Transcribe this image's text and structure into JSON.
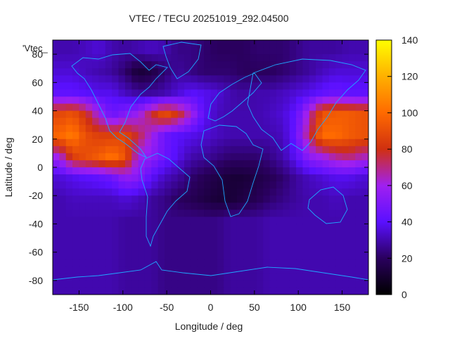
{
  "chart_data": {
    "type": "heatmap",
    "title": "VTEC / TECU 20251019_292.04500",
    "xlabel": "Longitude / deg",
    "ylabel": "Latitude / deg",
    "series_key": "'Vtec_",
    "xlim": [
      -180,
      180
    ],
    "ylim": [
      -90,
      90
    ],
    "xticks": [
      -150,
      -100,
      -50,
      0,
      50,
      100,
      150
    ],
    "yticks": [
      -80,
      -60,
      -40,
      -20,
      0,
      20,
      40,
      60,
      80
    ],
    "colorbar": {
      "min": 0,
      "max": 140,
      "ticks": [
        0,
        20,
        40,
        60,
        80,
        100,
        120,
        140
      ],
      "stops": [
        "#000000",
        "#2a005e",
        "#5a10ff",
        "#a020f0",
        "#d03010",
        "#ff6a00",
        "#ffb000",
        "#ffff00"
      ]
    },
    "grid": {
      "lon_start": -180,
      "lon_step": 15,
      "lat_start": 90,
      "lat_step": -15,
      "values": [
        [
          30,
          30,
          32,
          35,
          30,
          28,
          30,
          32,
          30,
          25,
          25,
          22,
          20,
          20,
          20,
          22,
          22,
          22,
          25,
          28,
          28,
          28,
          30,
          30
        ],
        [
          35,
          35,
          32,
          30,
          28,
          22,
          12,
          15,
          22,
          28,
          25,
          22,
          22,
          22,
          20,
          20,
          20,
          22,
          25,
          28,
          32,
          35,
          35,
          35
        ],
        [
          42,
          42,
          40,
          38,
          38,
          32,
          28,
          28,
          30,
          35,
          40,
          38,
          35,
          30,
          28,
          30,
          30,
          32,
          35,
          38,
          42,
          45,
          42,
          42
        ],
        [
          88,
          92,
          80,
          60,
          45,
          52,
          58,
          75,
          90,
          80,
          60,
          40,
          32,
          30,
          30,
          30,
          32,
          35,
          42,
          65,
          92,
          95,
          95,
          92
        ],
        [
          98,
          105,
          90,
          85,
          85,
          88,
          75,
          60,
          45,
          40,
          38,
          35,
          32,
          30,
          30,
          30,
          30,
          32,
          45,
          72,
          100,
          100,
          95,
          92
        ],
        [
          60,
          85,
          90,
          95,
          102,
          92,
          60,
          55,
          45,
          38,
          30,
          28,
          25,
          22,
          22,
          22,
          25,
          30,
          40,
          55,
          60,
          68,
          72,
          65
        ],
        [
          35,
          38,
          40,
          42,
          45,
          55,
          52,
          40,
          32,
          28,
          22,
          18,
          15,
          12,
          12,
          15,
          18,
          22,
          28,
          32,
          35,
          38,
          38,
          35
        ],
        [
          30,
          32,
          32,
          32,
          32,
          35,
          32,
          28,
          25,
          20,
          18,
          15,
          12,
          12,
          15,
          18,
          22,
          25,
          28,
          30,
          30,
          32,
          30,
          30
        ],
        [
          30,
          30,
          30,
          30,
          30,
          28,
          28,
          28,
          25,
          25,
          25,
          25,
          25,
          28,
          28,
          28,
          30,
          30,
          30,
          30,
          30,
          30,
          30,
          30
        ]
      ]
    }
  }
}
